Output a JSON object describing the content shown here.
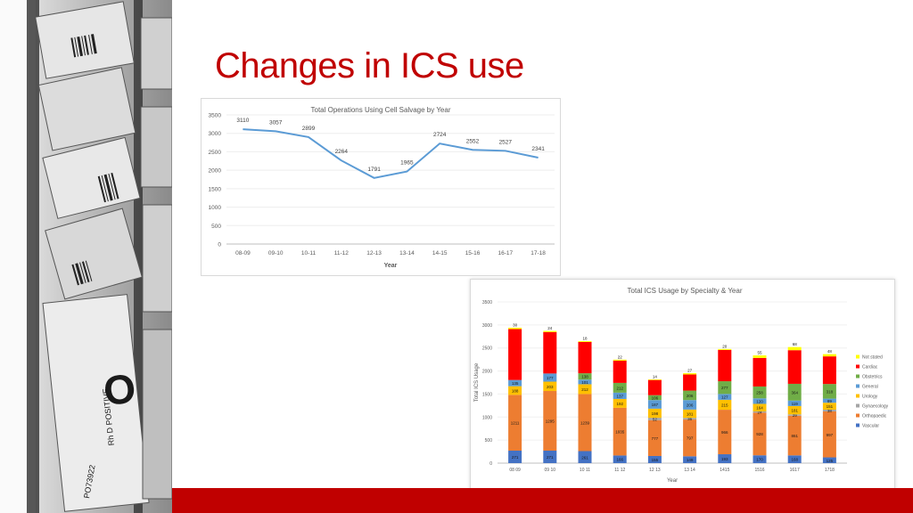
{
  "slide": {
    "title": "Changes in ICS use",
    "accent_color": "#c00000",
    "photo": {
      "description_icon": "blood-bag-photo",
      "labels": [
        "Rh D POSITIVE",
        "O",
        "PO73922"
      ]
    }
  },
  "chart_data": [
    {
      "type": "line",
      "title": "Total Operations Using Cell Salvage by Year",
      "xlabel": "Year",
      "ylabel": "",
      "categories": [
        "08-09",
        "09-10",
        "10-11",
        "11-12",
        "12-13",
        "13-14",
        "14-15",
        "15-16",
        "16-17",
        "17-18"
      ],
      "values": [
        3110,
        3057,
        2899,
        2264,
        1791,
        1965,
        2724,
        2552,
        2527,
        2341
      ],
      "ylim": [
        0,
        3500
      ],
      "yticks": [
        0,
        500,
        1000,
        1500,
        2000,
        2500,
        3000,
        3500
      ],
      "line_color": "#5b9bd5",
      "grid": true
    },
    {
      "type": "bar",
      "stacked": true,
      "title": "Total ICS Usage by Specialty & Year",
      "xlabel": "Year",
      "ylabel": "Total ICS Usage",
      "categories": [
        "08 09",
        "09 10",
        "10 11",
        "11 12",
        "12 13",
        "13 14",
        "1415",
        "1516",
        "1617",
        "1718"
      ],
      "ylim": [
        0,
        3500
      ],
      "yticks": [
        0,
        500,
        1000,
        1500,
        2000,
        2500,
        3000,
        3500
      ],
      "legend_position": "right",
      "series": [
        {
          "name": "Vascular",
          "color": "#4472c4",
          "values": [
            271,
            271,
            261,
            166,
            155,
            149,
            193,
            170,
            168,
            125
          ]
        },
        {
          "name": "Orthopaedic",
          "color": "#ed7d31",
          "values": [
            1211,
            1295,
            1239,
            1035,
            777,
            797,
            966,
            928,
            861,
            997
          ]
        },
        {
          "name": "Gynaecology",
          "color": "#a5a5a5",
          "values": [
            0,
            0,
            0,
            0,
            52,
            36,
            0,
            24,
            29,
            38
          ]
        },
        {
          "name": "Urology",
          "color": "#ffc000",
          "values": [
            188,
            203,
            212,
            192,
            198,
            181,
            215,
            164,
            181,
            151
          ]
        },
        {
          "name": "General",
          "color": "#5b9bd5",
          "values": [
            135,
            177,
            101,
            137,
            187,
            206,
            127,
            120,
            119,
            89
          ]
        },
        {
          "name": "Obstetrics",
          "color": "#70ad47",
          "values": [
            0,
            0,
            138,
            212,
            106,
            206,
            277,
            258,
            364,
            318
          ]
        },
        {
          "name": "Cardiac",
          "color": "#ff0000",
          "values": [
            1105,
            900,
            680,
            483,
            330,
            350,
            680,
            620,
            730,
            600
          ]
        },
        {
          "name": "Not stated",
          "color": "#ffff00",
          "values": [
            30,
            24,
            18,
            22,
            14,
            27,
            20,
            55,
            68,
            48
          ]
        }
      ],
      "value_labels": [
        {
          "series": "Vascular",
          "labels": [
            "271",
            "271",
            "261",
            "166",
            "155",
            "149",
            "193",
            "170",
            "168",
            "125"
          ]
        },
        {
          "series": "Orthopaedic",
          "labels": [
            "1211",
            "1295",
            "1239",
            "1035",
            "777",
            "797",
            "966",
            "928",
            "861",
            "997"
          ]
        },
        {
          "series": "Gynaecology",
          "labels": [
            "",
            "",
            "",
            "",
            "52",
            "36",
            "",
            "24",
            "29",
            "38"
          ]
        },
        {
          "series": "Urology",
          "labels": [
            "188",
            "203",
            "212",
            "192",
            "198",
            "181",
            "215",
            "164",
            "181",
            "151"
          ]
        },
        {
          "series": "General",
          "labels": [
            "135",
            "177",
            "101",
            "137",
            "187",
            "206",
            "127",
            "120",
            "119",
            "89"
          ]
        },
        {
          "series": "Obstetrics",
          "labels": [
            "",
            "",
            "138",
            "212",
            "106",
            "206",
            "277",
            "258",
            "364",
            "318"
          ]
        },
        {
          "series": "Not stated",
          "labels": [
            "30",
            "24",
            "18",
            "22",
            "14",
            "27",
            "20",
            "55",
            "68",
            "48"
          ]
        }
      ],
      "extra_labels": [
        {
          "category": "08 09",
          "text": "56"
        },
        {
          "category": "08 09",
          "text": "137"
        },
        {
          "category": "09 10",
          "text": "117"
        },
        {
          "category": "09 10",
          "text": "138"
        },
        {
          "category": "11 12",
          "text": "41"
        }
      ]
    }
  ]
}
